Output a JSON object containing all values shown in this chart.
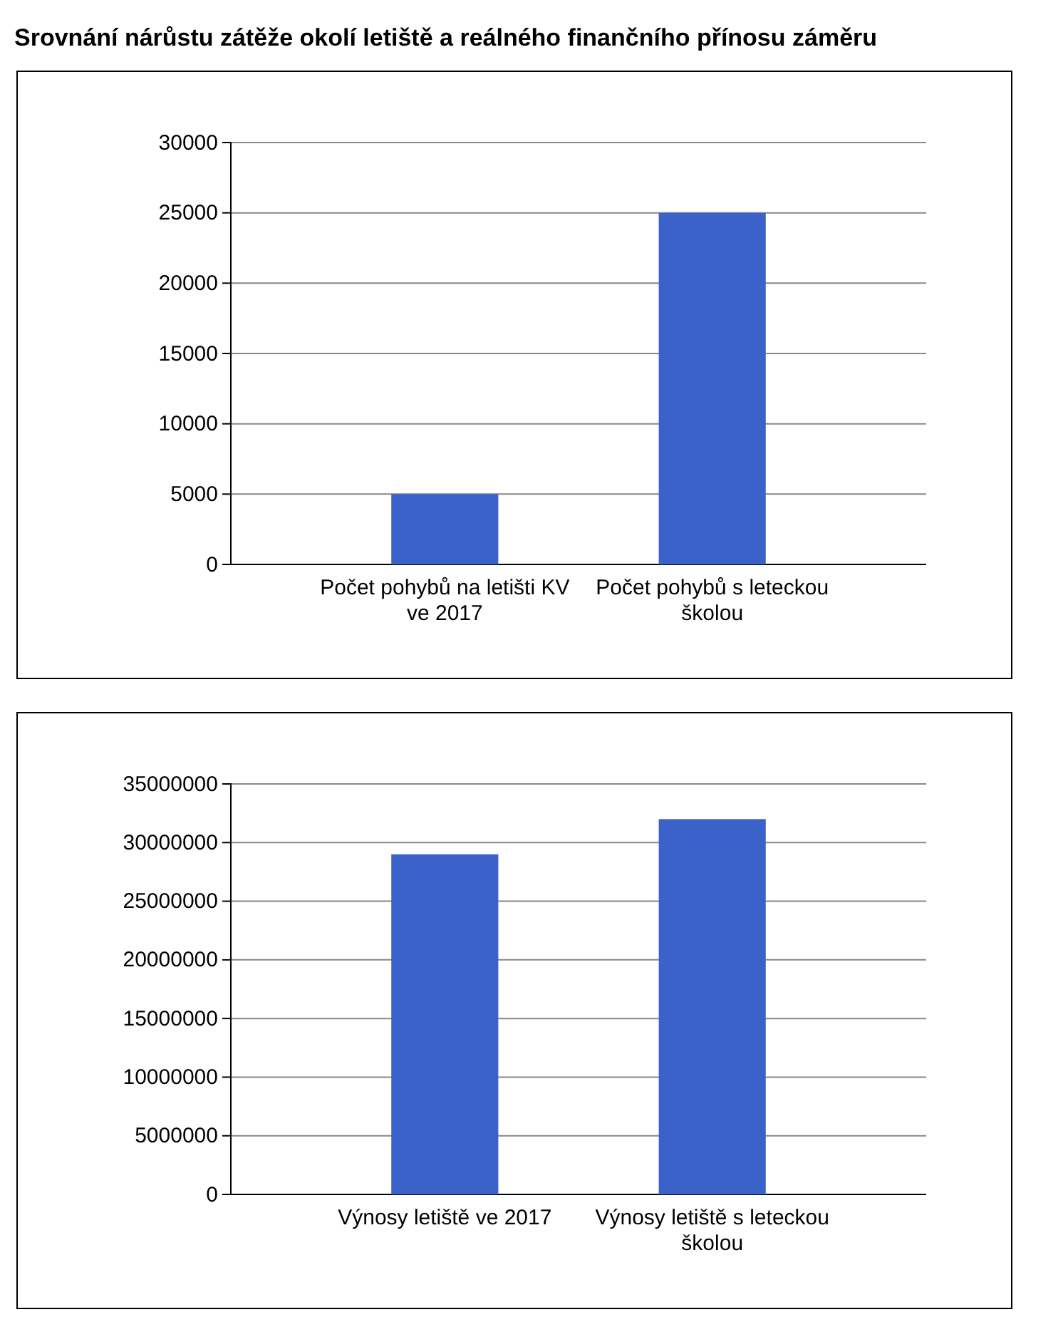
{
  "chart_data": [
    {
      "type": "bar",
      "title": "Srovnání nárůstu zátěže okolí letiště a reálného finančního přínosu záměru",
      "categories": [
        "Počet pohybů na letišti KV ve 2017",
        "Počet pohybů  s leteckou školou"
      ],
      "values": [
        5000,
        25000
      ],
      "color": "#3b62c8",
      "ylim": [
        0,
        30000
      ],
      "yticks": [
        0,
        5000,
        10000,
        15000,
        20000,
        25000,
        30000
      ],
      "grid": "y"
    },
    {
      "type": "bar",
      "categories": [
        "Výnosy letiště ve 2017",
        "Výnosy letiště s leteckou školou"
      ],
      "values": [
        29000000,
        32000000
      ],
      "color": "#3b62c8",
      "ylim": [
        0,
        35000000
      ],
      "yticks": [
        0,
        5000000,
        10000000,
        15000000,
        20000000,
        25000000,
        30000000,
        35000000
      ],
      "grid": "y"
    }
  ]
}
